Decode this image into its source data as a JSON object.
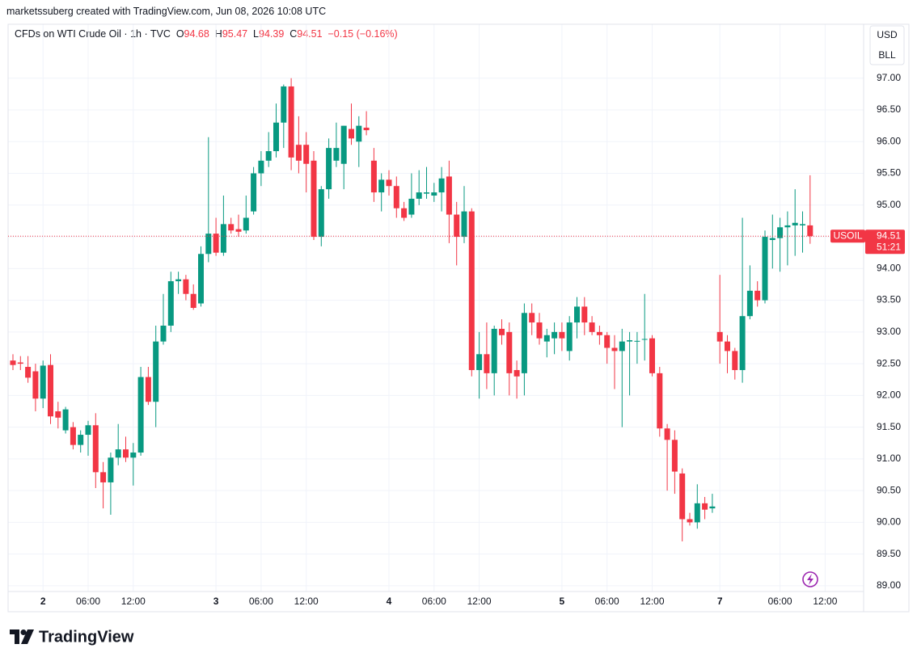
{
  "header": {
    "credit": "marketssuberg created with TradingView.com, Jun 08, 2026 10:08 UTC",
    "symbol": "CFDs on WTI Crude Oil · 1h · TVC",
    "o": "O",
    "h": "H",
    "l": "L",
    "c": "C",
    "change_label": "−0.15 (−0.16%)",
    "currency": "USD",
    "unit": "BLL",
    "ticker": "USOIL",
    "countdown": "51:21",
    "logo": "TradingView"
  },
  "chart_data": {
    "type": "candlestick",
    "categories": [
      null,
      null,
      null,
      null,
      "2",
      null,
      null,
      null,
      null,
      null,
      "06:00",
      null,
      null,
      null,
      null,
      null,
      "12:00",
      null,
      null,
      null,
      null,
      null,
      null,
      null,
      null,
      null,
      null,
      "3",
      null,
      null,
      null,
      null,
      null,
      "06:00",
      null,
      null,
      null,
      null,
      null,
      "12:00",
      null,
      null,
      null,
      null,
      null,
      null,
      null,
      null,
      null,
      null,
      "4",
      null,
      null,
      null,
      null,
      null,
      "06:00",
      null,
      null,
      null,
      null,
      null,
      "12:00",
      null,
      null,
      null,
      null,
      null,
      null,
      null,
      null,
      null,
      null,
      "5",
      null,
      null,
      null,
      null,
      null,
      "06:00",
      null,
      null,
      null,
      null,
      null,
      "12:00",
      null,
      null,
      null,
      null,
      null,
      null,
      null,
      null,
      "7",
      null,
      null,
      null,
      null,
      null,
      null,
      null,
      "06:00",
      null,
      null,
      null,
      null,
      null,
      "12:00"
    ],
    "open": [
      92.55,
      92.52,
      92.45,
      92.38,
      91.95,
      92.48,
      91.75,
      91.45,
      91.5,
      91.22,
      91.38,
      91.53,
      90.79,
      90.63,
      91.02,
      91.15,
      91.02,
      91.1,
      92.29,
      91.9,
      92.85,
      93.1,
      93.8,
      93.83,
      93.6,
      93.45,
      94.23,
      94.55,
      94.25,
      94.7,
      94.62,
      94.6,
      94.9,
      95.5,
      95.7,
      95.85,
      96.3,
      96.87,
      95.95,
      95.95,
      95.7,
      94.5,
      95.25,
      95.7,
      95.65,
      96.2,
      96.0,
      96.22,
      95.7,
      95.2,
      95.4,
      95.3,
      94.95,
      94.85,
      95.1,
      95.18,
      95.15,
      95.2,
      95.45,
      94.85,
      94.5,
      94.9,
      92.4,
      92.65,
      92.35,
      93.05,
      93.0,
      92.4,
      92.35,
      93.3,
      93.15,
      92.85,
      92.9,
      93.0,
      92.7,
      93.15,
      93.4,
      93.15,
      93.0,
      92.95,
      92.75,
      92.7,
      92.85,
      92.85,
      92.88,
      92.9,
      92.35,
      91.48,
      91.3,
      90.77,
      90.05,
      90.0,
      90.3,
      90.22,
      93.0,
      92.85,
      92.7,
      92.4,
      93.25,
      93.65,
      93.5,
      94.45,
      94.48,
      94.65,
      94.68,
      94.68,
      94.68,
      null,
      null
    ],
    "high": [
      92.65,
      92.62,
      92.62,
      92.5,
      92.55,
      92.65,
      91.9,
      91.82,
      91.58,
      91.45,
      91.6,
      91.72,
      90.95,
      91.1,
      91.55,
      91.35,
      91.25,
      92.45,
      92.45,
      93.1,
      93.6,
      93.95,
      93.95,
      93.9,
      93.75,
      94.35,
      96.07,
      94.8,
      95.15,
      94.8,
      94.85,
      95.15,
      95.6,
      95.85,
      96.15,
      96.6,
      96.9,
      97.0,
      96.4,
      96.15,
      95.85,
      95.3,
      96.05,
      96.3,
      96.25,
      96.6,
      96.4,
      96.48,
      95.9,
      95.5,
      95.55,
      95.45,
      95.05,
      95.5,
      95.55,
      95.6,
      95.35,
      95.6,
      95.7,
      95.05,
      95.3,
      94.95,
      93.0,
      93.15,
      93.1,
      93.2,
      93.15,
      92.55,
      93.45,
      93.45,
      93.3,
      93.05,
      93.15,
      93.15,
      93.25,
      93.55,
      93.55,
      93.25,
      93.1,
      93.0,
      92.95,
      93.05,
      93.0,
      93.0,
      93.6,
      92.95,
      92.45,
      91.55,
      91.45,
      90.85,
      90.15,
      90.6,
      90.4,
      90.45,
      93.9,
      92.95,
      92.75,
      94.8,
      94.05,
      93.8,
      94.6,
      94.85,
      94.8,
      94.9,
      95.25,
      94.9,
      95.47,
      null,
      null
    ],
    "low": [
      92.4,
      92.4,
      92.2,
      91.75,
      91.8,
      91.55,
      91.48,
      91.4,
      91.15,
      91.1,
      91.05,
      90.54,
      90.22,
      90.12,
      90.9,
      90.95,
      90.58,
      91.05,
      91.85,
      91.5,
      92.8,
      93.0,
      93.6,
      93.5,
      93.35,
      93.4,
      94.1,
      94.2,
      94.2,
      94.55,
      94.5,
      94.55,
      94.85,
      95.3,
      95.6,
      95.75,
      95.9,
      95.55,
      95.5,
      95.2,
      94.45,
      94.35,
      95.1,
      95.6,
      95.25,
      95.95,
      95.6,
      96.1,
      95.05,
      94.9,
      95.15,
      94.8,
      94.75,
      94.8,
      95.0,
      95.1,
      95.05,
      94.9,
      94.4,
      94.05,
      94.4,
      92.3,
      91.95,
      92.1,
      92.0,
      92.8,
      92.0,
      91.95,
      92.0,
      92.95,
      92.8,
      92.6,
      92.65,
      92.7,
      92.55,
      92.9,
      92.95,
      92.95,
      92.8,
      92.5,
      92.1,
      91.5,
      92.0,
      92.5,
      92.55,
      92.3,
      91.35,
      90.5,
      90.45,
      89.7,
      89.95,
      89.9,
      90.05,
      90.15,
      92.5,
      92.35,
      92.25,
      92.2,
      93.2,
      93.4,
      93.45,
      94.0,
      93.95,
      94.05,
      94.2,
      94.25,
      94.39,
      null,
      null
    ],
    "close": [
      92.48,
      92.5,
      92.28,
      91.95,
      92.47,
      91.67,
      91.65,
      91.78,
      91.22,
      91.38,
      91.53,
      90.79,
      90.63,
      91.02,
      91.15,
      91.02,
      91.1,
      92.29,
      91.9,
      92.85,
      93.1,
      93.8,
      93.83,
      93.6,
      93.38,
      94.23,
      94.55,
      94.25,
      94.7,
      94.6,
      94.58,
      94.8,
      95.5,
      95.7,
      95.85,
      96.3,
      96.87,
      95.75,
      95.7,
      95.65,
      94.5,
      95.25,
      95.9,
      95.9,
      96.25,
      96.05,
      96.25,
      96.18,
      95.2,
      95.4,
      95.3,
      94.95,
      94.8,
      95.1,
      95.2,
      95.2,
      95.2,
      95.42,
      94.85,
      94.5,
      94.9,
      92.4,
      92.65,
      92.35,
      93.05,
      92.95,
      92.35,
      92.3,
      93.3,
      93.15,
      92.9,
      92.95,
      93.0,
      92.9,
      93.15,
      93.4,
      93.15,
      93.0,
      92.95,
      92.75,
      92.7,
      92.85,
      92.87,
      92.86,
      92.89,
      92.35,
      91.48,
      91.3,
      90.8,
      90.05,
      90.0,
      90.3,
      90.2,
      90.25,
      92.85,
      92.7,
      92.4,
      93.25,
      93.65,
      93.5,
      94.5,
      94.48,
      94.65,
      94.68,
      94.72,
      94.7,
      94.51,
      null,
      null
    ],
    "up_color": "#089981",
    "down_color": "#f23645",
    "ylim": [
      88.91,
      97.85
    ],
    "yticks": [
      {
        "value": 89,
        "label": "89.00"
      },
      {
        "value": 89.5,
        "label": "89.50"
      },
      {
        "value": 90,
        "label": "90.00"
      },
      {
        "value": 90.5,
        "label": "90.50"
      },
      {
        "value": 91,
        "label": "91.00"
      },
      {
        "value": 91.5,
        "label": "91.50"
      },
      {
        "value": 92,
        "label": "92.00"
      },
      {
        "value": 92.5,
        "label": "92.50"
      },
      {
        "value": 93,
        "label": "93.00"
      },
      {
        "value": 93.5,
        "label": "93.50"
      },
      {
        "value": 94,
        "label": "94.00"
      },
      {
        "value": 94.5,
        "label": "94.50"
      },
      {
        "value": 95,
        "label": "95.00"
      },
      {
        "value": 95.5,
        "label": "95.50"
      },
      {
        "value": 96,
        "label": "96.00"
      },
      {
        "value": 96.5,
        "label": "96.50"
      },
      {
        "value": 97,
        "label": "97.00"
      }
    ],
    "grid": true
  }
}
